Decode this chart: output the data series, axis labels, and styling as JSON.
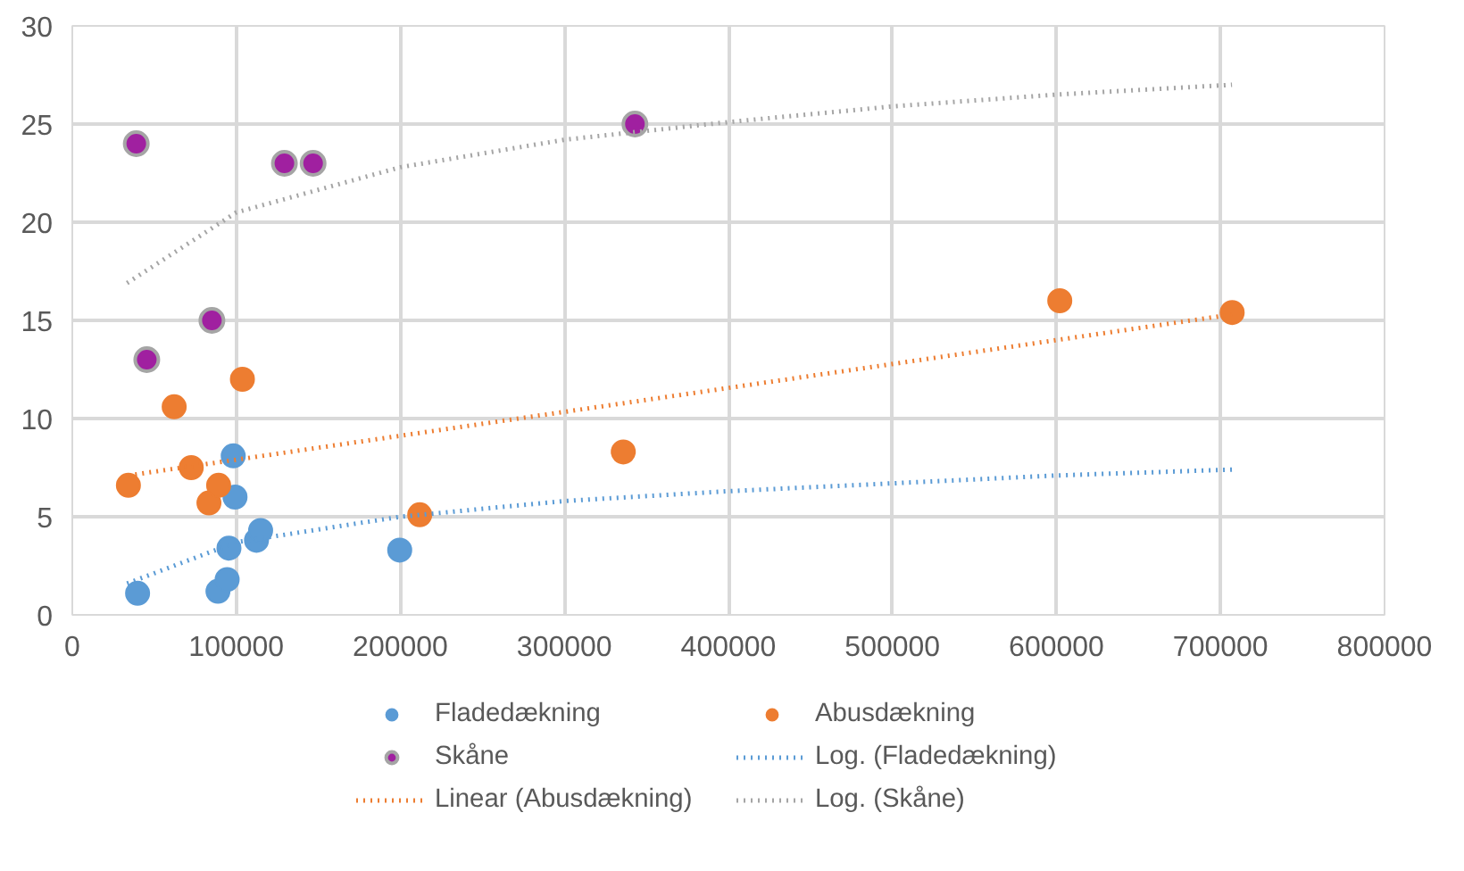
{
  "chart_data": {
    "type": "scatter",
    "xlim": [
      0,
      800000
    ],
    "ylim": [
      0,
      30
    ],
    "xticks": [
      0,
      100000,
      200000,
      300000,
      400000,
      500000,
      600000,
      700000,
      800000
    ],
    "yticks": [
      0,
      5,
      10,
      15,
      20,
      25,
      30
    ],
    "grid": true,
    "legend": "bottom",
    "marker": "circle",
    "series": [
      {
        "name": "Fladedækning",
        "color": "#5b9bd5",
        "x": [
          39800,
          88800,
          94400,
          95500,
          98100,
          99200,
          112300,
          114800,
          199600
        ],
        "values": [
          1.1,
          1.2,
          1.8,
          3.4,
          8.1,
          6.0,
          3.8,
          4.3,
          3.3
        ]
      },
      {
        "name": "Abusdækning",
        "color": "#ed7d31",
        "x": [
          34200,
          62100,
          72500,
          83300,
          89200,
          103700,
          211800,
          335900,
          602000,
          707100
        ],
        "values": [
          6.6,
          10.6,
          7.5,
          5.7,
          6.6,
          12.0,
          5.1,
          8.3,
          16.0,
          15.4
        ]
      },
      {
        "name": "Skåne",
        "color": "#a020a0",
        "x": [
          39000,
          45400,
          85100,
          129300,
          146800,
          343000
        ],
        "values": [
          24.0,
          13.0,
          15.0,
          23.0,
          23.0,
          25.0
        ]
      },
      {
        "name": "Log. (Fladedækning)",
        "type": "line",
        "line_style": "dotted",
        "marker": "none",
        "color": "#5b9bd5",
        "x": [
          33400,
          100000,
          200000,
          300000,
          400000,
          500000,
          600000,
          707000
        ],
        "values": [
          1.6,
          3.7,
          5.0,
          5.8,
          6.3,
          6.7,
          7.1,
          7.4
        ]
      },
      {
        "name": "Linear (Abusdækning)",
        "type": "line",
        "line_style": "dotted",
        "marker": "none",
        "color": "#ed7d31",
        "x": [
          34000,
          707000
        ],
        "values": [
          7.1,
          15.3
        ]
      },
      {
        "name": "Log. (Skåne)",
        "type": "line",
        "line_style": "dotted",
        "marker": "none",
        "color": "#a5a5a5",
        "x": [
          33400,
          100000,
          200000,
          300000,
          400000,
          500000,
          600000,
          707000
        ],
        "values": [
          16.9,
          20.5,
          22.8,
          24.2,
          25.1,
          25.9,
          26.5,
          27.0
        ]
      }
    ]
  }
}
